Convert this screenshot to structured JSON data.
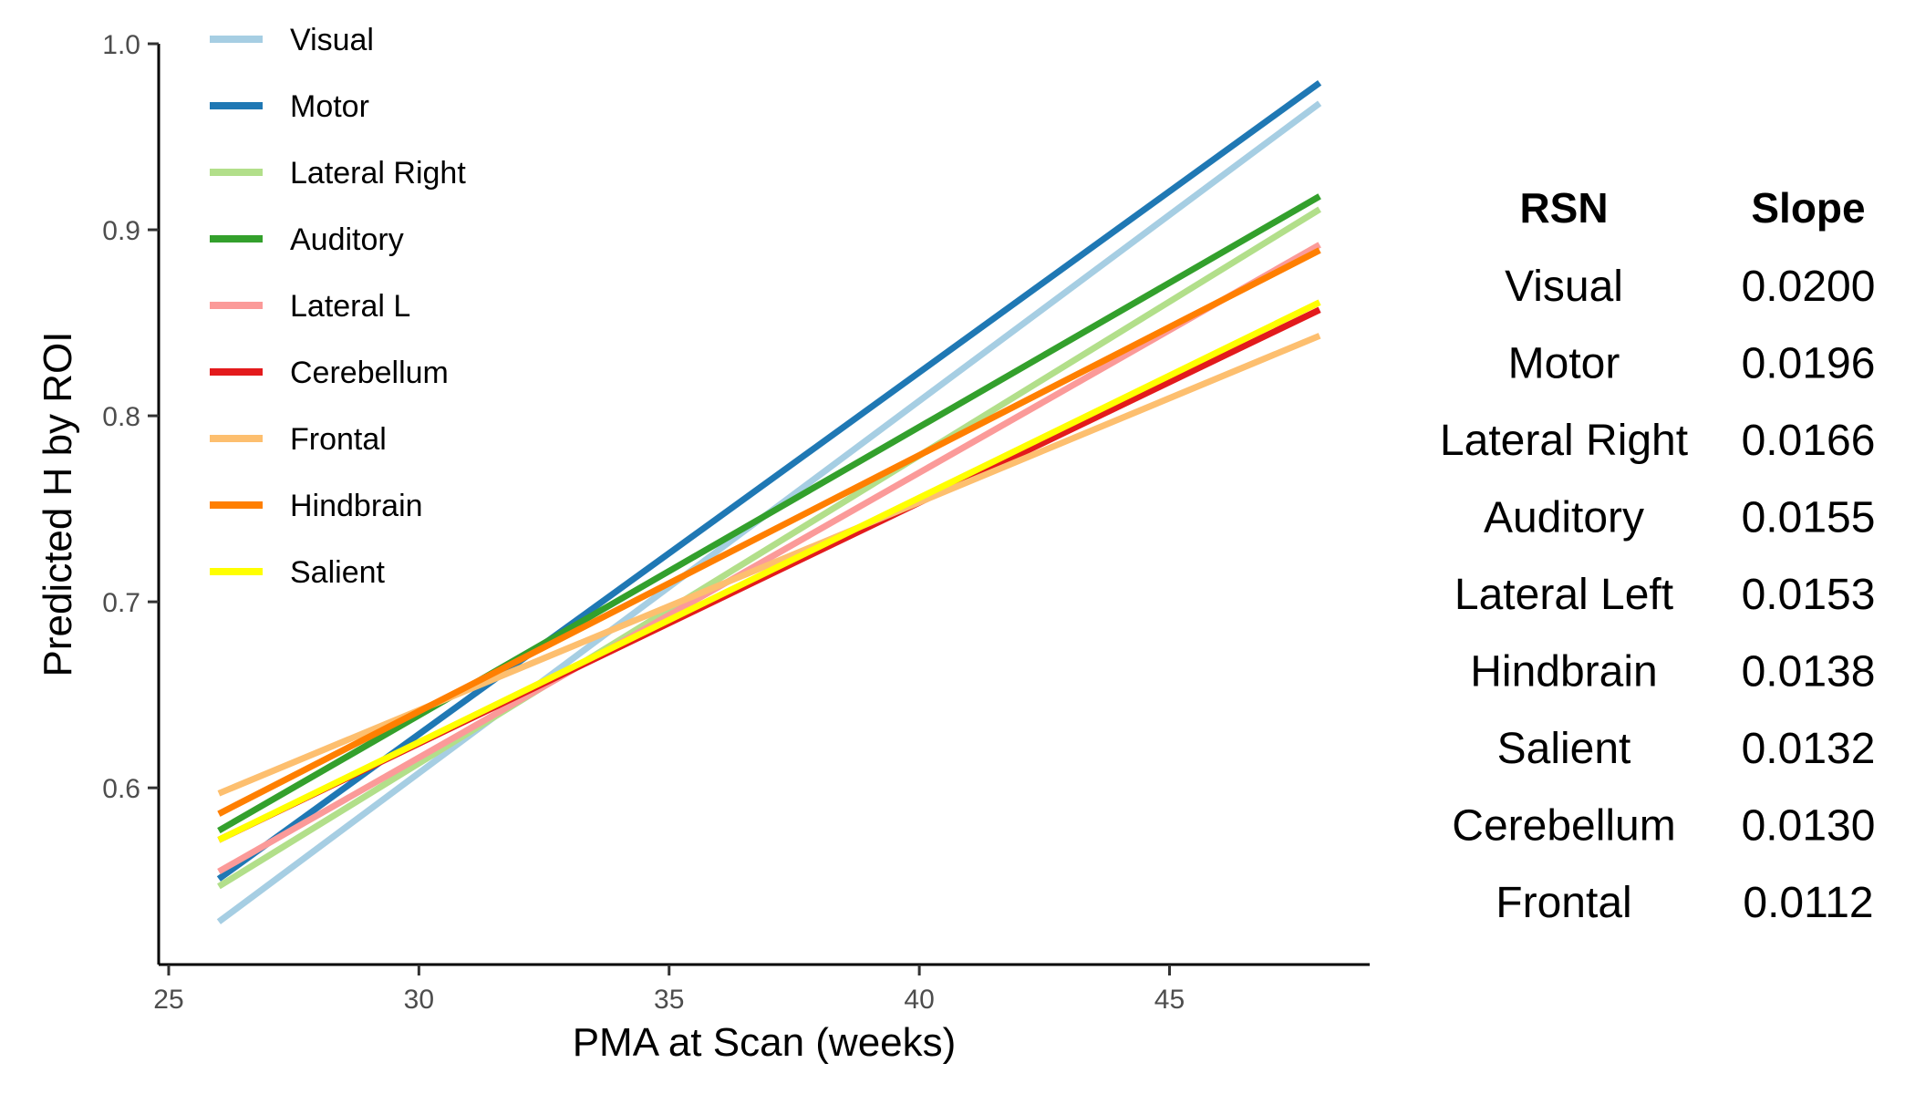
{
  "chart_data": {
    "type": "line",
    "xlabel": "PMA at Scan (weeks)",
    "ylabel": "Predicted H by ROI",
    "xlim": [
      24.8,
      49.0
    ],
    "ylim": [
      0.505,
      1.0
    ],
    "xticks": [
      25,
      30,
      35,
      40,
      45
    ],
    "yticks": [
      0.6,
      0.7,
      0.8,
      0.9,
      1.0
    ],
    "ytick_labels": [
      "0.6",
      "0.7",
      "0.8",
      "0.9",
      "1.0"
    ],
    "grid": false,
    "legend_position": "top-left",
    "series": [
      {
        "name": "Visual",
        "color": "#a6cee3",
        "x": [
          26,
          48
        ],
        "y": [
          0.528,
          0.968
        ]
      },
      {
        "name": "Motor",
        "color": "#1f78b4",
        "x": [
          26,
          48
        ],
        "y": [
          0.551,
          0.979
        ]
      },
      {
        "name": "Lateral Right",
        "color": "#b2df8a",
        "x": [
          26,
          48
        ],
        "y": [
          0.547,
          0.911
        ]
      },
      {
        "name": "Auditory",
        "color": "#33a02c",
        "x": [
          26,
          48
        ],
        "y": [
          0.577,
          0.918
        ]
      },
      {
        "name": "Lateral L",
        "color": "#fb9a99",
        "x": [
          26,
          48
        ],
        "y": [
          0.555,
          0.892
        ]
      },
      {
        "name": "Cerebellum",
        "color": "#e31a1c",
        "x": [
          26,
          48
        ],
        "y": [
          0.572,
          0.857
        ]
      },
      {
        "name": "Frontal",
        "color": "#fdbf6f",
        "x": [
          26,
          48
        ],
        "y": [
          0.597,
          0.843
        ]
      },
      {
        "name": "Hindbrain",
        "color": "#ff7f00",
        "x": [
          26,
          48
        ],
        "y": [
          0.586,
          0.889
        ]
      },
      {
        "name": "Salient",
        "color": "#ffff00",
        "x": [
          26,
          48
        ],
        "y": [
          0.572,
          0.861
        ]
      }
    ],
    "table": {
      "headers": [
        "RSN",
        "Slope"
      ],
      "rows": [
        [
          "Visual",
          "0.0200"
        ],
        [
          "Motor",
          "0.0196"
        ],
        [
          "Lateral Right",
          "0.0166"
        ],
        [
          "Auditory",
          "0.0155"
        ],
        [
          "Lateral Left",
          "0.0153"
        ],
        [
          "Hindbrain",
          "0.0138"
        ],
        [
          "Salient",
          "0.0132"
        ],
        [
          "Cerebellum",
          "0.0130"
        ],
        [
          "Frontal",
          "0.0112"
        ]
      ]
    }
  }
}
